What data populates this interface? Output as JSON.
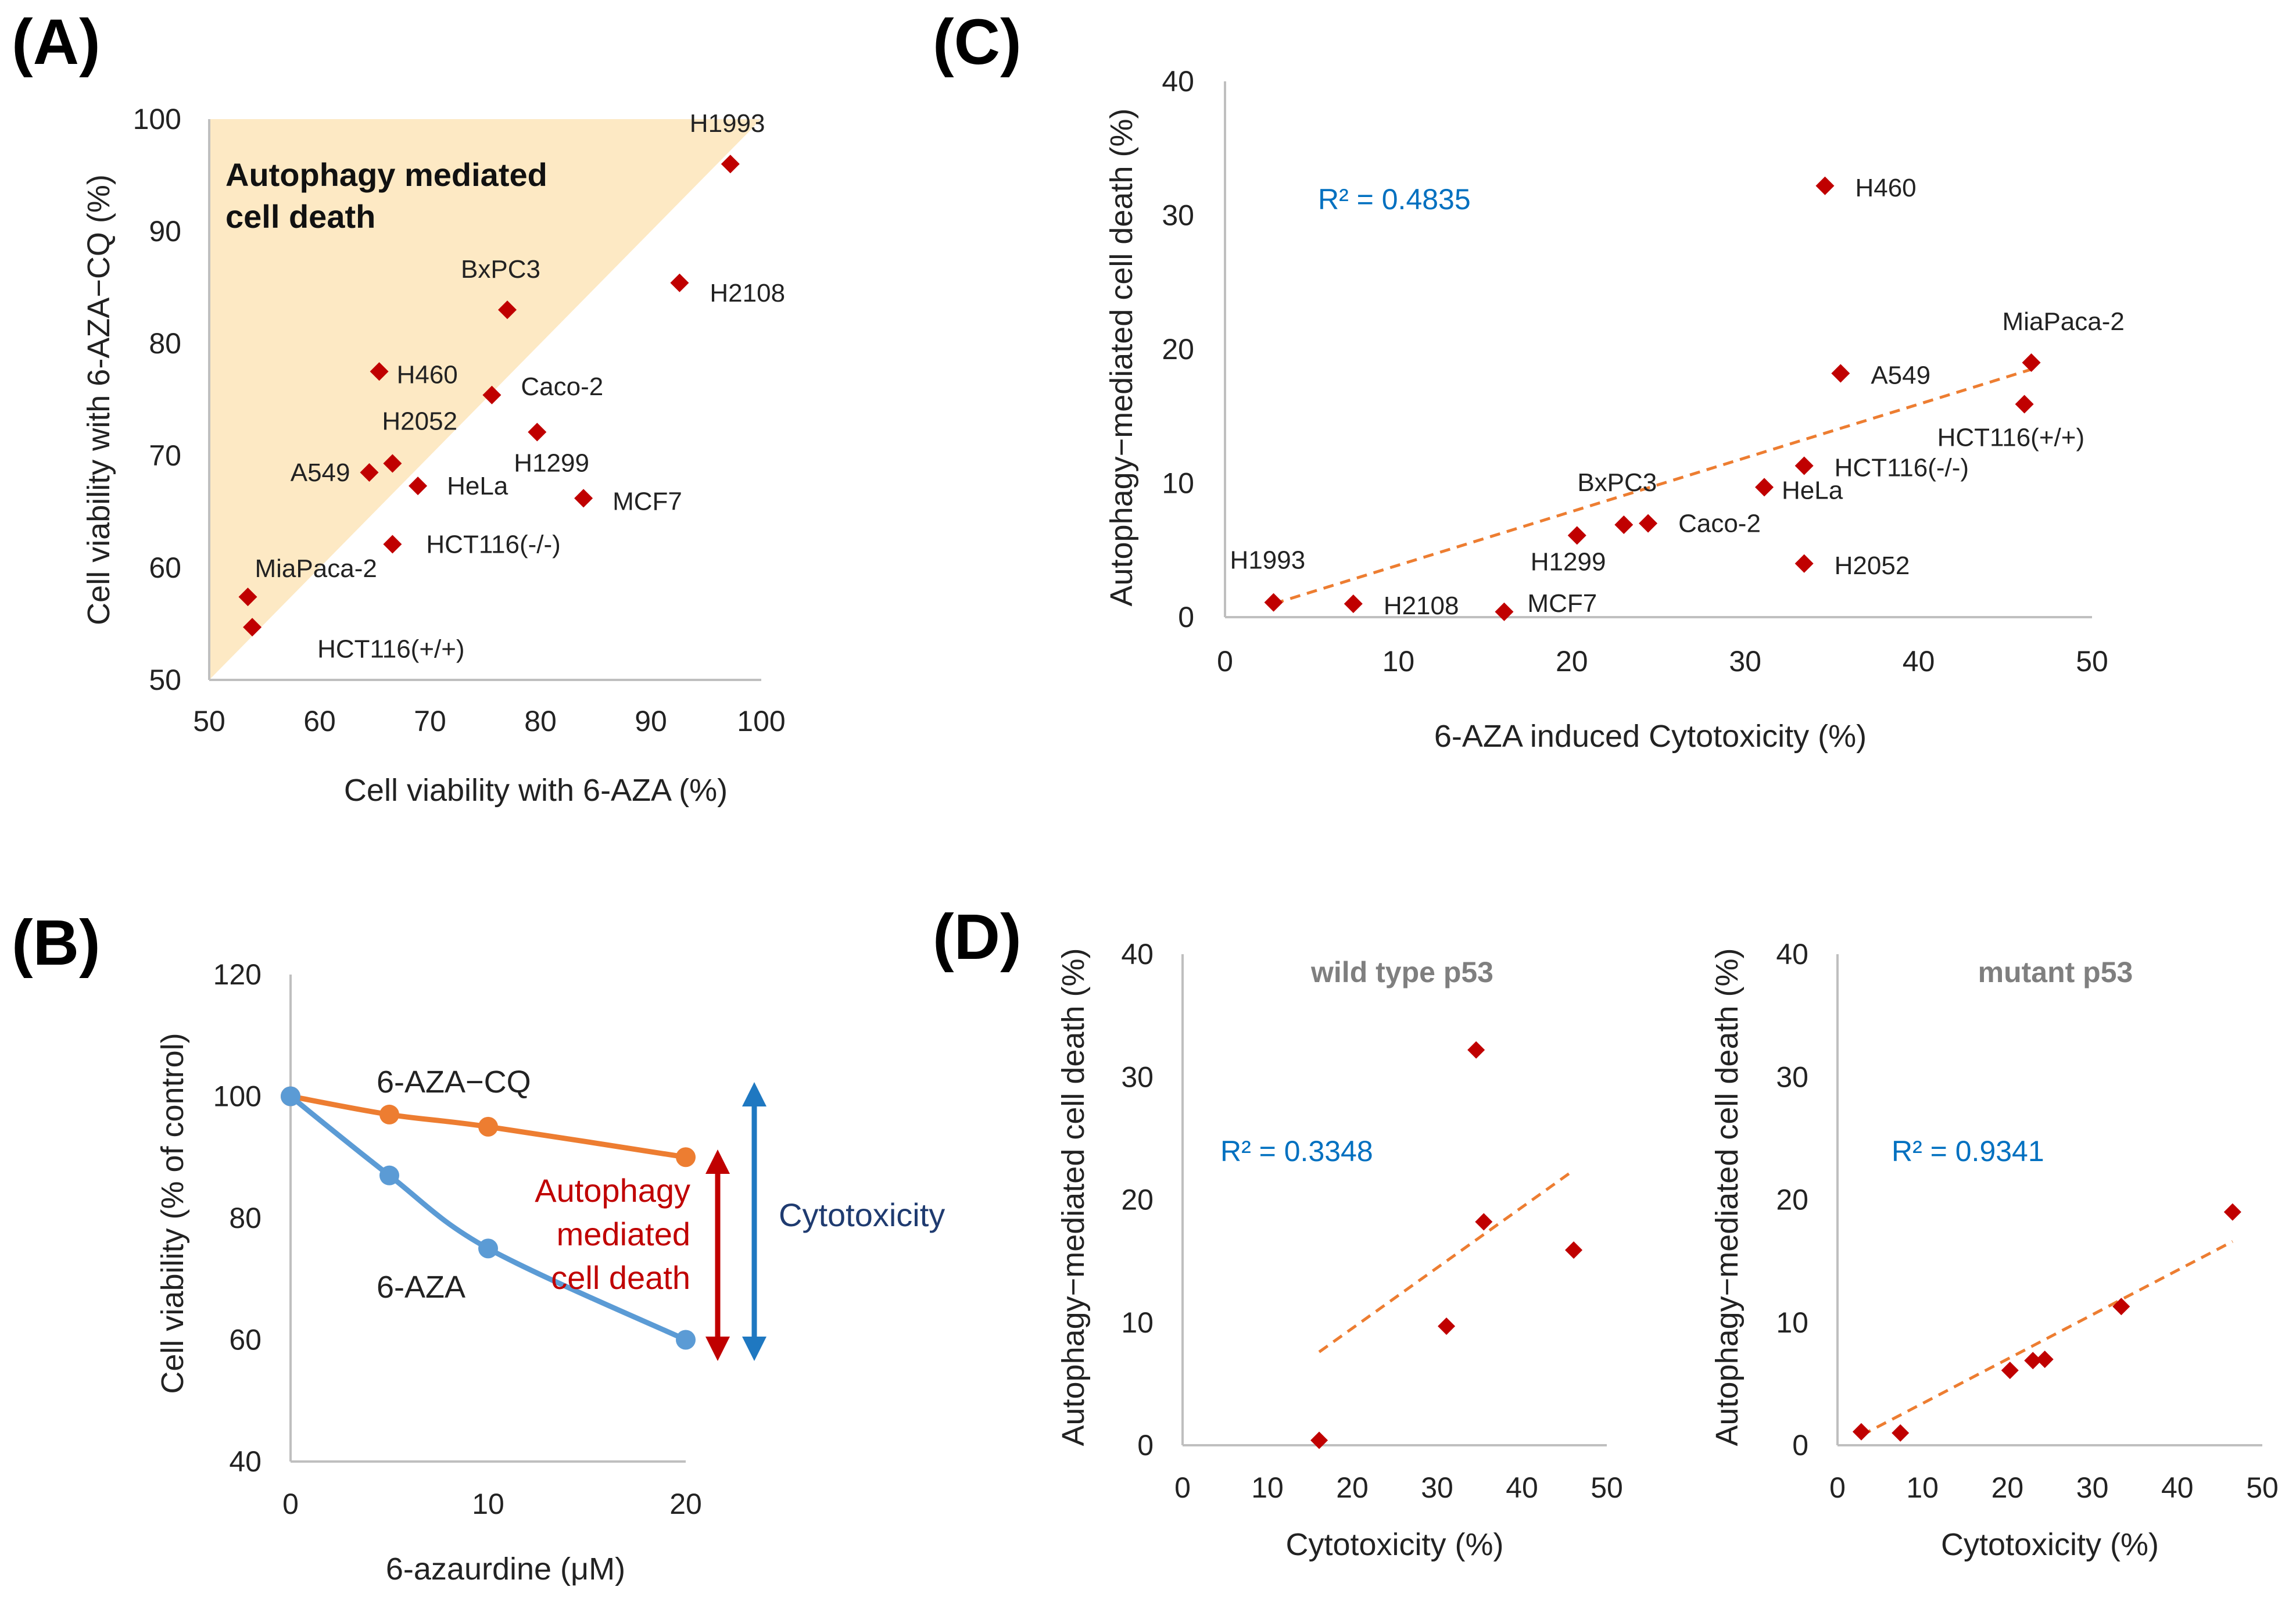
{
  "colors": {
    "marker": "#c00000",
    "trend": "#ed7d31",
    "r2": "#0070c0",
    "shade": "#fde9c4",
    "line_aza_cq": "#ed7d31",
    "line_aza": "#5b9bd5",
    "autophagy_arrow": "#c00000",
    "cytotoxicity_arrow": "#1f78c1",
    "cytotoxicity_text": "#1f3b70"
  },
  "chart_data": [
    {
      "id": "A",
      "panel_label": "(A)",
      "type": "scatter",
      "xlabel": "Cell viability with 6-AZA (%)",
      "ylabel": "Cell viability with 6-AZA−CQ (%)",
      "xlim": [
        50,
        100
      ],
      "ylim": [
        50,
        100
      ],
      "xticks": [
        "50",
        "60",
        "70",
        "80",
        "90",
        "100"
      ],
      "yticks": [
        "50",
        "60",
        "70",
        "80",
        "90",
        "100"
      ],
      "region_label_line1": "Autophagy mediated",
      "region_label_line2": "cell death",
      "points": [
        {
          "label": "H1993",
          "x": 97.2,
          "y": 96.0
        },
        {
          "label": "H2108",
          "x": 92.6,
          "y": 85.4
        },
        {
          "label": "BxPC3",
          "x": 77.0,
          "y": 83.0
        },
        {
          "label": "H460",
          "x": 65.4,
          "y": 77.5
        },
        {
          "label": "Caco-2",
          "x": 75.6,
          "y": 75.4
        },
        {
          "label": "H1299",
          "x": 79.7,
          "y": 72.1
        },
        {
          "label": "H2052",
          "x": 66.6,
          "y": 69.3
        },
        {
          "label": "A549",
          "x": 64.5,
          "y": 68.5
        },
        {
          "label": "HeLa",
          "x": 68.9,
          "y": 67.3
        },
        {
          "label": "MCF7",
          "x": 83.9,
          "y": 66.2
        },
        {
          "label": "HCT116(-/-)",
          "x": 66.6,
          "y": 62.1
        },
        {
          "label": "MiaPaca-2",
          "x": 53.5,
          "y": 57.4
        },
        {
          "label": "HCT116(+/+)",
          "x": 53.9,
          "y": 54.7
        }
      ]
    },
    {
      "id": "B",
      "panel_label": "(B)",
      "type": "line",
      "xlabel": "6-azaurdine (μM)",
      "ylabel": "Cell viability (% of control)",
      "x": [
        0,
        5,
        10,
        20
      ],
      "xticks": [
        "0",
        "10",
        "20"
      ],
      "yticks": [
        "40",
        "60",
        "80",
        "100",
        "120"
      ],
      "ylim": [
        40,
        120
      ],
      "series": [
        {
          "name": "6-AZA−CQ",
          "values": [
            100,
            97,
            95,
            90
          ]
        },
        {
          "name": "6-AZA",
          "values": [
            100,
            87,
            75,
            60
          ]
        }
      ],
      "annotation_autophagy": [
        "Autophagy",
        "mediated",
        "cell death"
      ],
      "annotation_cytotoxicity": "Cytotoxicity"
    },
    {
      "id": "C",
      "panel_label": "(C)",
      "type": "scatter",
      "xlabel": "6-AZA induced Cytotoxicity (%)",
      "ylabel": "Autophagy−mediated cell death (%)",
      "xlim": [
        0,
        50
      ],
      "ylim": [
        0,
        40
      ],
      "xticks": [
        "0",
        "10",
        "20",
        "30",
        "40",
        "50"
      ],
      "yticks": [
        "0",
        "10",
        "20",
        "30",
        "40"
      ],
      "r2": "R² = 0.4835",
      "trend": {
        "x0": 2.8,
        "y0": 1.0,
        "x1": 46.5,
        "y1": 18.5
      },
      "points": [
        {
          "label": "H460",
          "x": 34.6,
          "y": 32.2
        },
        {
          "label": "MiaPaca-2",
          "x": 46.5,
          "y": 19.0
        },
        {
          "label": "A549",
          "x": 35.5,
          "y": 18.2
        },
        {
          "label": "HCT116(+/+)",
          "x": 46.1,
          "y": 15.9
        },
        {
          "label": "HCT116(-/-)",
          "x": 33.4,
          "y": 11.3
        },
        {
          "label": "HeLa",
          "x": 31.1,
          "y": 9.7
        },
        {
          "label": "BxPC3",
          "x": 23.0,
          "y": 6.9
        },
        {
          "label": "Caco-2",
          "x": 24.4,
          "y": 7.0
        },
        {
          "label": "H1299",
          "x": 20.3,
          "y": 6.1
        },
        {
          "label": "H2052",
          "x": 33.4,
          "y": 4.0
        },
        {
          "label": "H1993",
          "x": 2.8,
          "y": 1.1
        },
        {
          "label": "H2108",
          "x": 7.4,
          "y": 1.0
        },
        {
          "label": "MCF7",
          "x": 16.1,
          "y": 0.4
        }
      ]
    },
    {
      "id": "D1",
      "panel_label": "(D)",
      "type": "scatter",
      "title": "wild type p53",
      "xlabel": "Cytotoxicity (%)",
      "ylabel": "Autophagy−mediated cell death (%)",
      "xlim": [
        0,
        50
      ],
      "ylim": [
        0,
        40
      ],
      "xticks": [
        "0",
        "10",
        "20",
        "30",
        "40",
        "50"
      ],
      "yticks": [
        "0",
        "10",
        "20",
        "30",
        "40"
      ],
      "r2": "R² = 0.3348",
      "trend": {
        "x0": 16.1,
        "y0": 7.6,
        "x1": 46.1,
        "y1": 22.4
      },
      "points": [
        {
          "x": 34.6,
          "y": 32.2
        },
        {
          "x": 35.5,
          "y": 18.2
        },
        {
          "x": 46.1,
          "y": 15.9
        },
        {
          "x": 31.1,
          "y": 9.7
        },
        {
          "x": 16.1,
          "y": 0.4
        }
      ]
    },
    {
      "id": "D2",
      "type": "scatter",
      "title": "mutant p53",
      "xlabel": "Cytotoxicity (%)",
      "ylabel": "Autophagy−mediated cell death (%)",
      "xlim": [
        0,
        50
      ],
      "ylim": [
        0,
        40
      ],
      "xticks": [
        "0",
        "10",
        "20",
        "30",
        "40",
        "50"
      ],
      "yticks": [
        "0",
        "10",
        "20",
        "30",
        "40"
      ],
      "r2": "R² = 0.9341",
      "trend": {
        "x0": 2.8,
        "y0": 0.8,
        "x1": 46.5,
        "y1": 16.6
      },
      "points": [
        {
          "x": 46.5,
          "y": 19.0
        },
        {
          "x": 33.4,
          "y": 11.3
        },
        {
          "x": 23.0,
          "y": 6.9
        },
        {
          "x": 24.4,
          "y": 7.0
        },
        {
          "x": 20.3,
          "y": 6.1
        },
        {
          "x": 2.8,
          "y": 1.1
        },
        {
          "x": 7.4,
          "y": 1.0
        }
      ]
    }
  ]
}
